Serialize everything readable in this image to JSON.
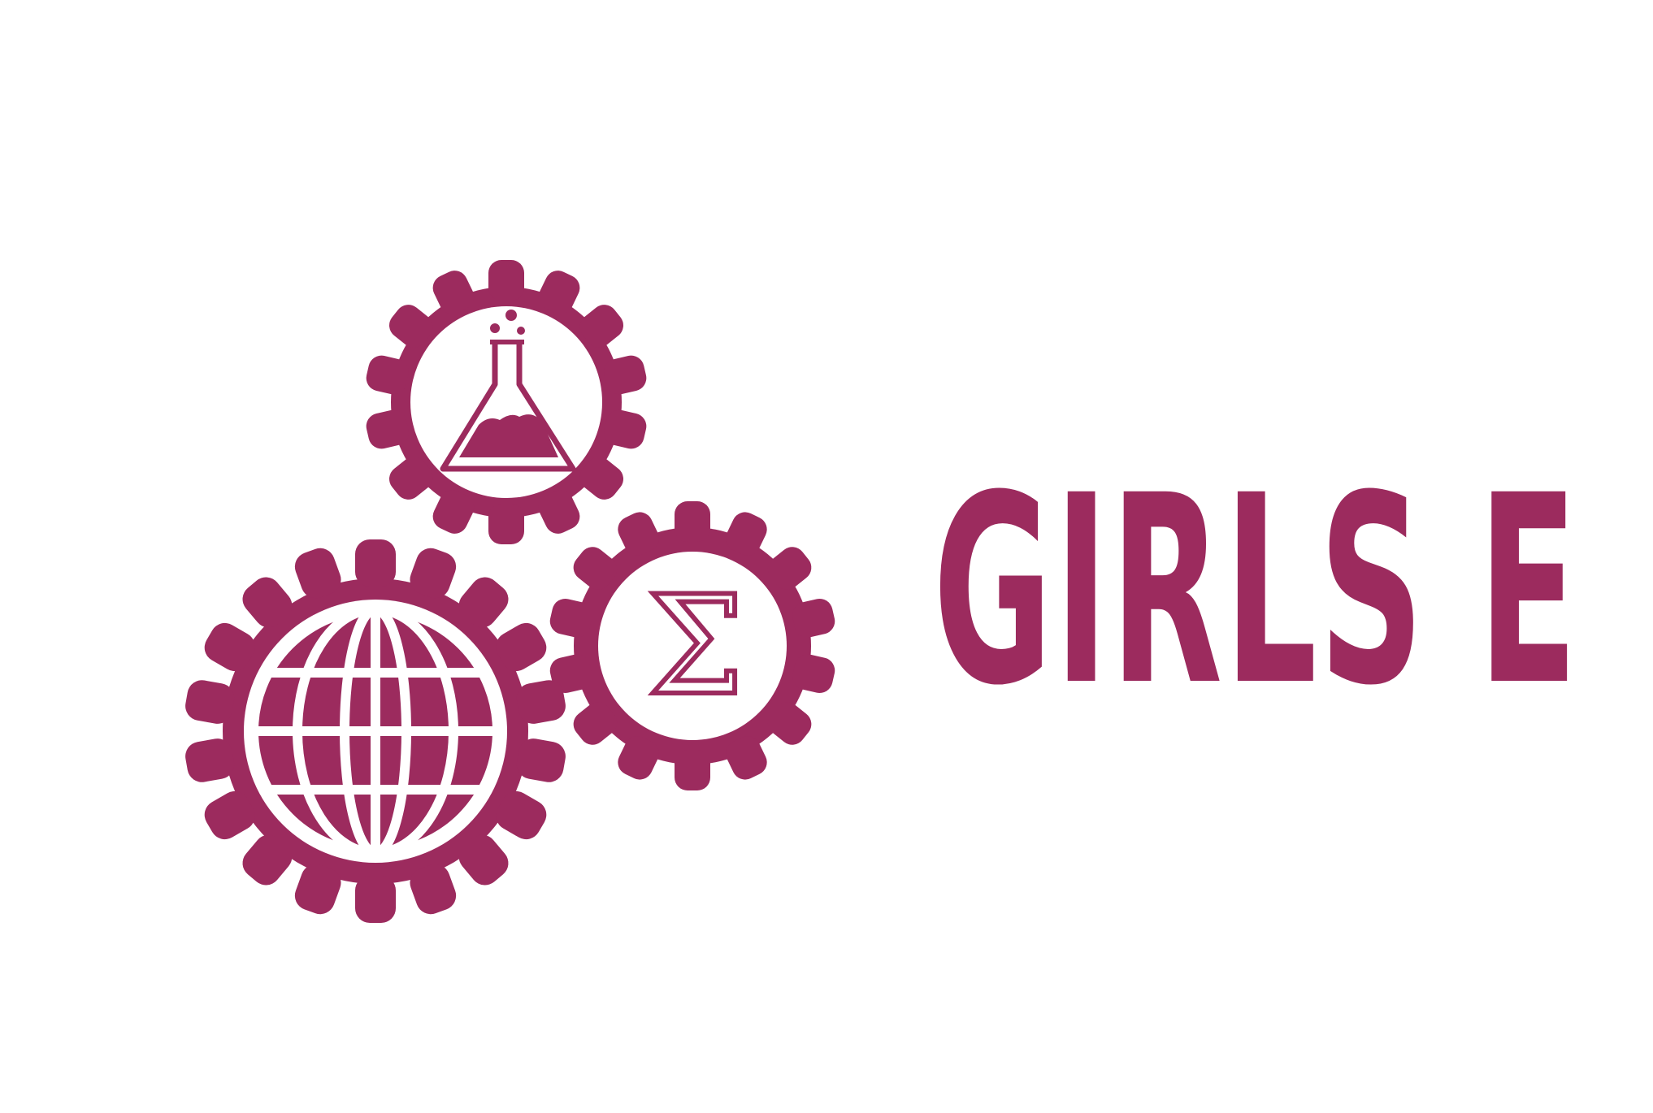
{
  "colors": {
    "brand": "#9c2b5e",
    "background": "#ffffff"
  },
  "logo": {
    "icons": [
      "flask-icon",
      "sigma-icon",
      "globe-icon"
    ],
    "sigma_glyph": "Σ"
  },
  "wordmark": {
    "text": "GIRLS E"
  }
}
